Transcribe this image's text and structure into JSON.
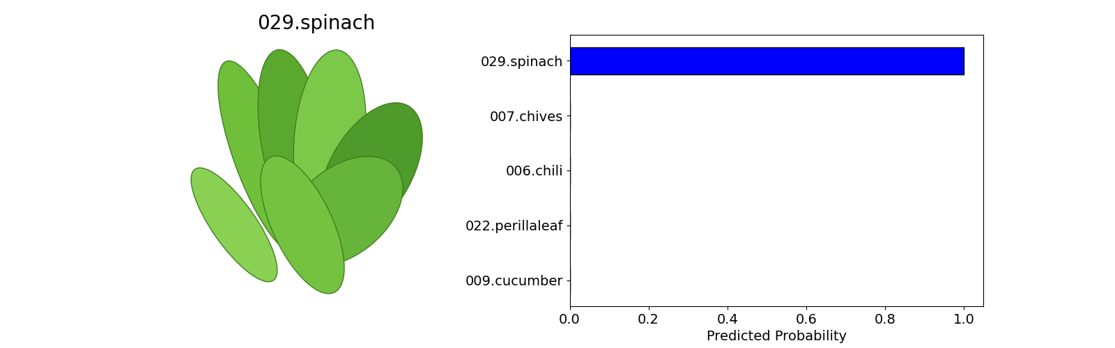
{
  "chart_data": [
    {
      "type": "image",
      "title": "029.spinach"
    },
    {
      "type": "bar",
      "orientation": "horizontal",
      "categories": [
        "029.spinach",
        "007.chives",
        "006.chili",
        "022.perillaleaf",
        "009.cucumber"
      ],
      "values": [
        1.0,
        0.0,
        0.0,
        0.0,
        0.0
      ],
      "color": "#0000ff",
      "x_label": "Predicted Probability",
      "xlim": [
        0.0,
        1.05
      ],
      "xticks": [
        0.0,
        0.2,
        0.4,
        0.6,
        0.8,
        1.0
      ],
      "grid": false
    }
  ]
}
